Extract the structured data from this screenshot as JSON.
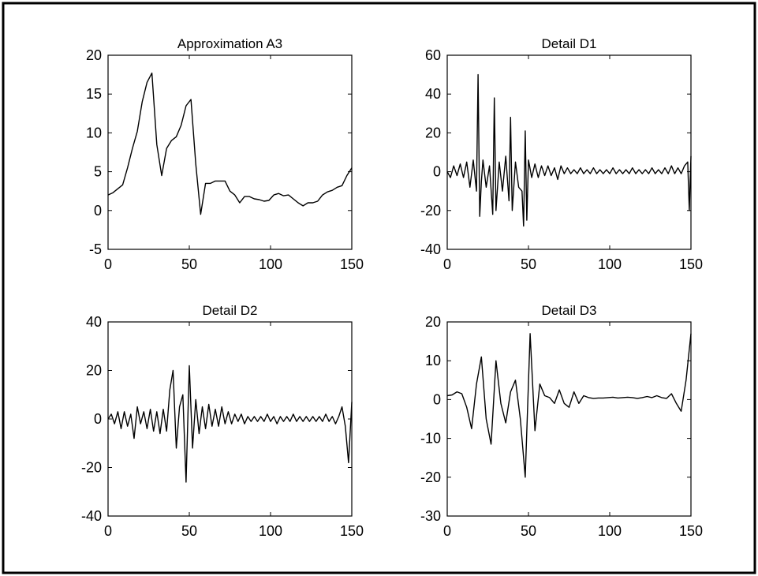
{
  "chart_data": [
    {
      "type": "line",
      "title": "Approximation A3",
      "xlim": [
        0,
        150
      ],
      "ylim": [
        -5,
        20
      ],
      "xticks": [
        0,
        50,
        100,
        150
      ],
      "yticks": [
        -5,
        0,
        5,
        10,
        15,
        20
      ],
      "grid": false,
      "series": [
        {
          "x": [
            0,
            3,
            6,
            9,
            12,
            15,
            18,
            21,
            24,
            27,
            30,
            33,
            36,
            39,
            42,
            45,
            48,
            51,
            54,
            57,
            60,
            63,
            66,
            69,
            72,
            75,
            78,
            81,
            84,
            87,
            90,
            93,
            96,
            99,
            102,
            105,
            108,
            111,
            114,
            117,
            120,
            123,
            126,
            129,
            132,
            135,
            138,
            141,
            144,
            147,
            150
          ],
          "values": [
            2.0,
            2.3,
            2.8,
            3.3,
            5.5,
            8.0,
            10.2,
            14.0,
            16.5,
            17.7,
            8.5,
            4.5,
            8.0,
            9.0,
            9.5,
            11.0,
            13.5,
            14.3,
            6.0,
            -0.5,
            3.5,
            3.5,
            3.8,
            3.8,
            3.8,
            2.5,
            2.0,
            1.0,
            1.8,
            1.8,
            1.5,
            1.4,
            1.2,
            1.3,
            2.0,
            2.2,
            1.9,
            2.0,
            1.5,
            1.0,
            0.6,
            1.0,
            1.0,
            1.2,
            2.0,
            2.4,
            2.6,
            3.0,
            3.2,
            4.5,
            5.5
          ]
        }
      ]
    },
    {
      "type": "line",
      "title": "Detail D1",
      "xlim": [
        0,
        150
      ],
      "ylim": [
        -40,
        60
      ],
      "xticks": [
        0,
        50,
        100,
        150
      ],
      "yticks": [
        -40,
        -20,
        0,
        20,
        40,
        60
      ],
      "grid": false,
      "series": [
        {
          "x": [
            0,
            2,
            4,
            6,
            8,
            10,
            12,
            14,
            16,
            18,
            19,
            20,
            21,
            22,
            24,
            26,
            28,
            29,
            30,
            32,
            34,
            36,
            38,
            39,
            40,
            42,
            44,
            46,
            47,
            48,
            49,
            50,
            52,
            54,
            56,
            58,
            60,
            62,
            64,
            66,
            68,
            70,
            72,
            74,
            76,
            78,
            80,
            82,
            84,
            86,
            88,
            90,
            92,
            94,
            96,
            98,
            100,
            102,
            104,
            106,
            108,
            110,
            112,
            114,
            116,
            118,
            120,
            122,
            124,
            126,
            128,
            130,
            132,
            134,
            136,
            138,
            140,
            142,
            144,
            146,
            148,
            149,
            150
          ],
          "values": [
            0,
            -3,
            3,
            -2,
            4,
            -3,
            5,
            -8,
            6,
            -10,
            50,
            -23,
            -5,
            6,
            -8,
            3,
            -22,
            38,
            -20,
            5,
            -10,
            8,
            -15,
            28,
            -20,
            5,
            -8,
            -10,
            -28,
            21,
            -25,
            6,
            -3,
            4,
            -3,
            3,
            -2,
            3,
            -2,
            2,
            -4,
            3,
            -1,
            2,
            -1,
            1,
            -1,
            2,
            -1,
            1,
            -1,
            2,
            -1,
            1,
            -1,
            1,
            -1,
            2,
            -1,
            1,
            -1,
            1,
            -1,
            2,
            -1,
            1,
            -1,
            1,
            -1,
            2,
            -1,
            1,
            -1,
            2,
            -1,
            3,
            -1,
            2,
            -1,
            3,
            5,
            -20,
            8
          ]
        }
      ]
    },
    {
      "type": "line",
      "title": "Detail D2",
      "xlim": [
        0,
        150
      ],
      "ylim": [
        -40,
        40
      ],
      "xticks": [
        0,
        50,
        100,
        150
      ],
      "yticks": [
        -40,
        -20,
        0,
        20,
        40
      ],
      "grid": false,
      "series": [
        {
          "x": [
            0,
            2,
            4,
            6,
            8,
            10,
            12,
            14,
            16,
            18,
            20,
            22,
            24,
            26,
            28,
            30,
            32,
            34,
            36,
            38,
            40,
            42,
            44,
            46,
            48,
            50,
            52,
            54,
            56,
            58,
            60,
            62,
            64,
            66,
            68,
            70,
            72,
            74,
            76,
            78,
            80,
            82,
            84,
            86,
            88,
            90,
            92,
            94,
            96,
            98,
            100,
            102,
            104,
            106,
            108,
            110,
            112,
            114,
            116,
            118,
            120,
            122,
            124,
            126,
            128,
            130,
            132,
            134,
            136,
            138,
            140,
            142,
            144,
            146,
            148,
            150
          ],
          "values": [
            0,
            2,
            -2,
            3,
            -4,
            3,
            -3,
            2,
            -8,
            5,
            -2,
            3,
            -4,
            4,
            -5,
            3,
            -6,
            4,
            -5,
            12,
            20,
            -12,
            5,
            10,
            -26,
            22,
            -12,
            8,
            -6,
            5,
            -4,
            6,
            -3,
            4,
            -3,
            5,
            -2,
            3,
            -2,
            2,
            -1,
            2,
            -2,
            1,
            -1,
            1,
            -1,
            1,
            -1,
            2,
            -1,
            1,
            -2,
            1,
            -1,
            1,
            -1,
            2,
            -1,
            1,
            -1,
            1,
            -1,
            1,
            -1,
            1,
            -1,
            2,
            -1,
            1,
            -2,
            1,
            5,
            -3,
            -18,
            7
          ]
        }
      ]
    },
    {
      "type": "line",
      "title": "Detail D3",
      "xlim": [
        0,
        150
      ],
      "ylim": [
        -30,
        20
      ],
      "xticks": [
        0,
        50,
        100,
        150
      ],
      "yticks": [
        -30,
        -20,
        -10,
        0,
        10,
        20
      ],
      "grid": false,
      "series": [
        {
          "x": [
            0,
            3,
            6,
            9,
            12,
            15,
            18,
            21,
            24,
            27,
            30,
            33,
            36,
            39,
            42,
            45,
            48,
            51,
            54,
            57,
            60,
            63,
            66,
            69,
            72,
            75,
            78,
            81,
            84,
            87,
            90,
            93,
            96,
            99,
            102,
            105,
            108,
            111,
            114,
            117,
            120,
            123,
            126,
            129,
            132,
            135,
            138,
            141,
            144,
            147,
            150
          ],
          "values": [
            1,
            1.2,
            2,
            1.5,
            -2,
            -7.5,
            4,
            11,
            -5,
            -11.5,
            10,
            -1,
            -6,
            2,
            5,
            -5,
            -20,
            17,
            -8,
            4,
            1,
            0.5,
            -1,
            2.5,
            -1,
            -2,
            2,
            -1,
            1,
            0.5,
            0.3,
            0.4,
            0.4,
            0.5,
            0.6,
            0.4,
            0.5,
            0.6,
            0.5,
            0.3,
            0.5,
            0.8,
            0.5,
            1,
            0.5,
            0.3,
            1.5,
            -1,
            -3,
            5,
            17
          ]
        }
      ]
    }
  ]
}
